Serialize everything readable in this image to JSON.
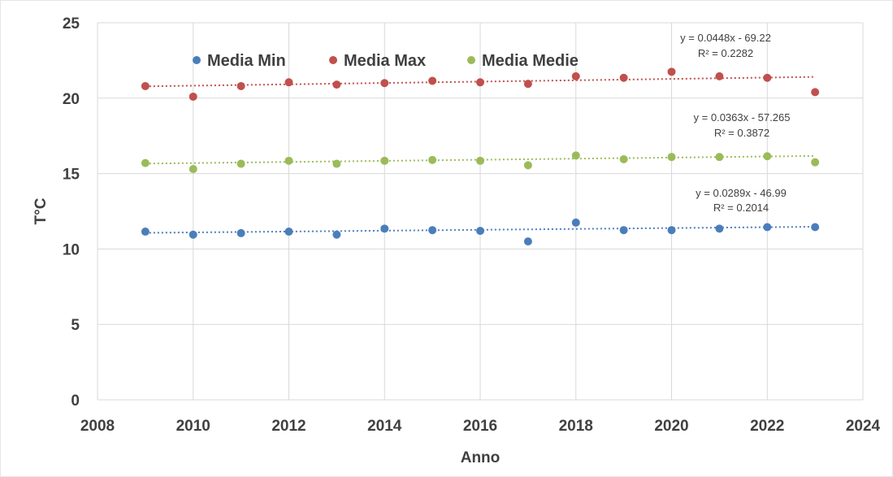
{
  "chart_data": {
    "type": "scatter",
    "xlabel": "Anno",
    "ylabel": "T°C",
    "xlim": [
      2008,
      2024
    ],
    "ylim": [
      0,
      25
    ],
    "x_ticks": [
      "2008",
      "2010",
      "2012",
      "2014",
      "2016",
      "2018",
      "2020",
      "2022",
      "2024"
    ],
    "y_ticks": [
      "0",
      "5",
      "10",
      "15",
      "20",
      "25"
    ],
    "grid": "vertical and horizontal major gridlines",
    "legend_position": "top-left",
    "x": [
      2009,
      2010,
      2011,
      2012,
      2013,
      2014,
      2015,
      2016,
      2017,
      2018,
      2019,
      2020,
      2021,
      2022,
      2023
    ],
    "series": [
      {
        "name": "Media Min",
        "color": "#4a7ebb",
        "values": [
          11.15,
          10.95,
          11.05,
          11.15,
          10.95,
          11.35,
          11.25,
          11.2,
          10.5,
          11.75,
          11.25,
          11.25,
          11.35,
          11.45,
          11.45
        ],
        "trendline": {
          "slope": 0.0289,
          "intercept": -46.99,
          "equation": "y = 0.0289x - 46.99",
          "r2": "R² = 0.2014"
        }
      },
      {
        "name": "Media Max",
        "color": "#c0504d",
        "values": [
          20.8,
          20.1,
          20.8,
          21.05,
          20.9,
          21.0,
          21.15,
          21.05,
          20.95,
          21.45,
          21.35,
          21.75,
          21.45,
          21.35,
          20.4
        ],
        "trendline": {
          "slope": 0.0448,
          "intercept": -69.22,
          "equation": "y = 0.0448x - 69.22",
          "r2": "R² = 0.2282"
        }
      },
      {
        "name": "Media Medie",
        "color": "#9bbb59",
        "values": [
          15.7,
          15.3,
          15.65,
          15.85,
          15.65,
          15.85,
          15.9,
          15.85,
          15.55,
          16.2,
          15.95,
          16.1,
          16.1,
          16.15,
          15.75
        ],
        "trendline": {
          "slope": 0.0363,
          "intercept": -57.265,
          "equation": "y = 0.0363x - 57.265",
          "r2": "R² = 0.3872"
        }
      }
    ]
  }
}
